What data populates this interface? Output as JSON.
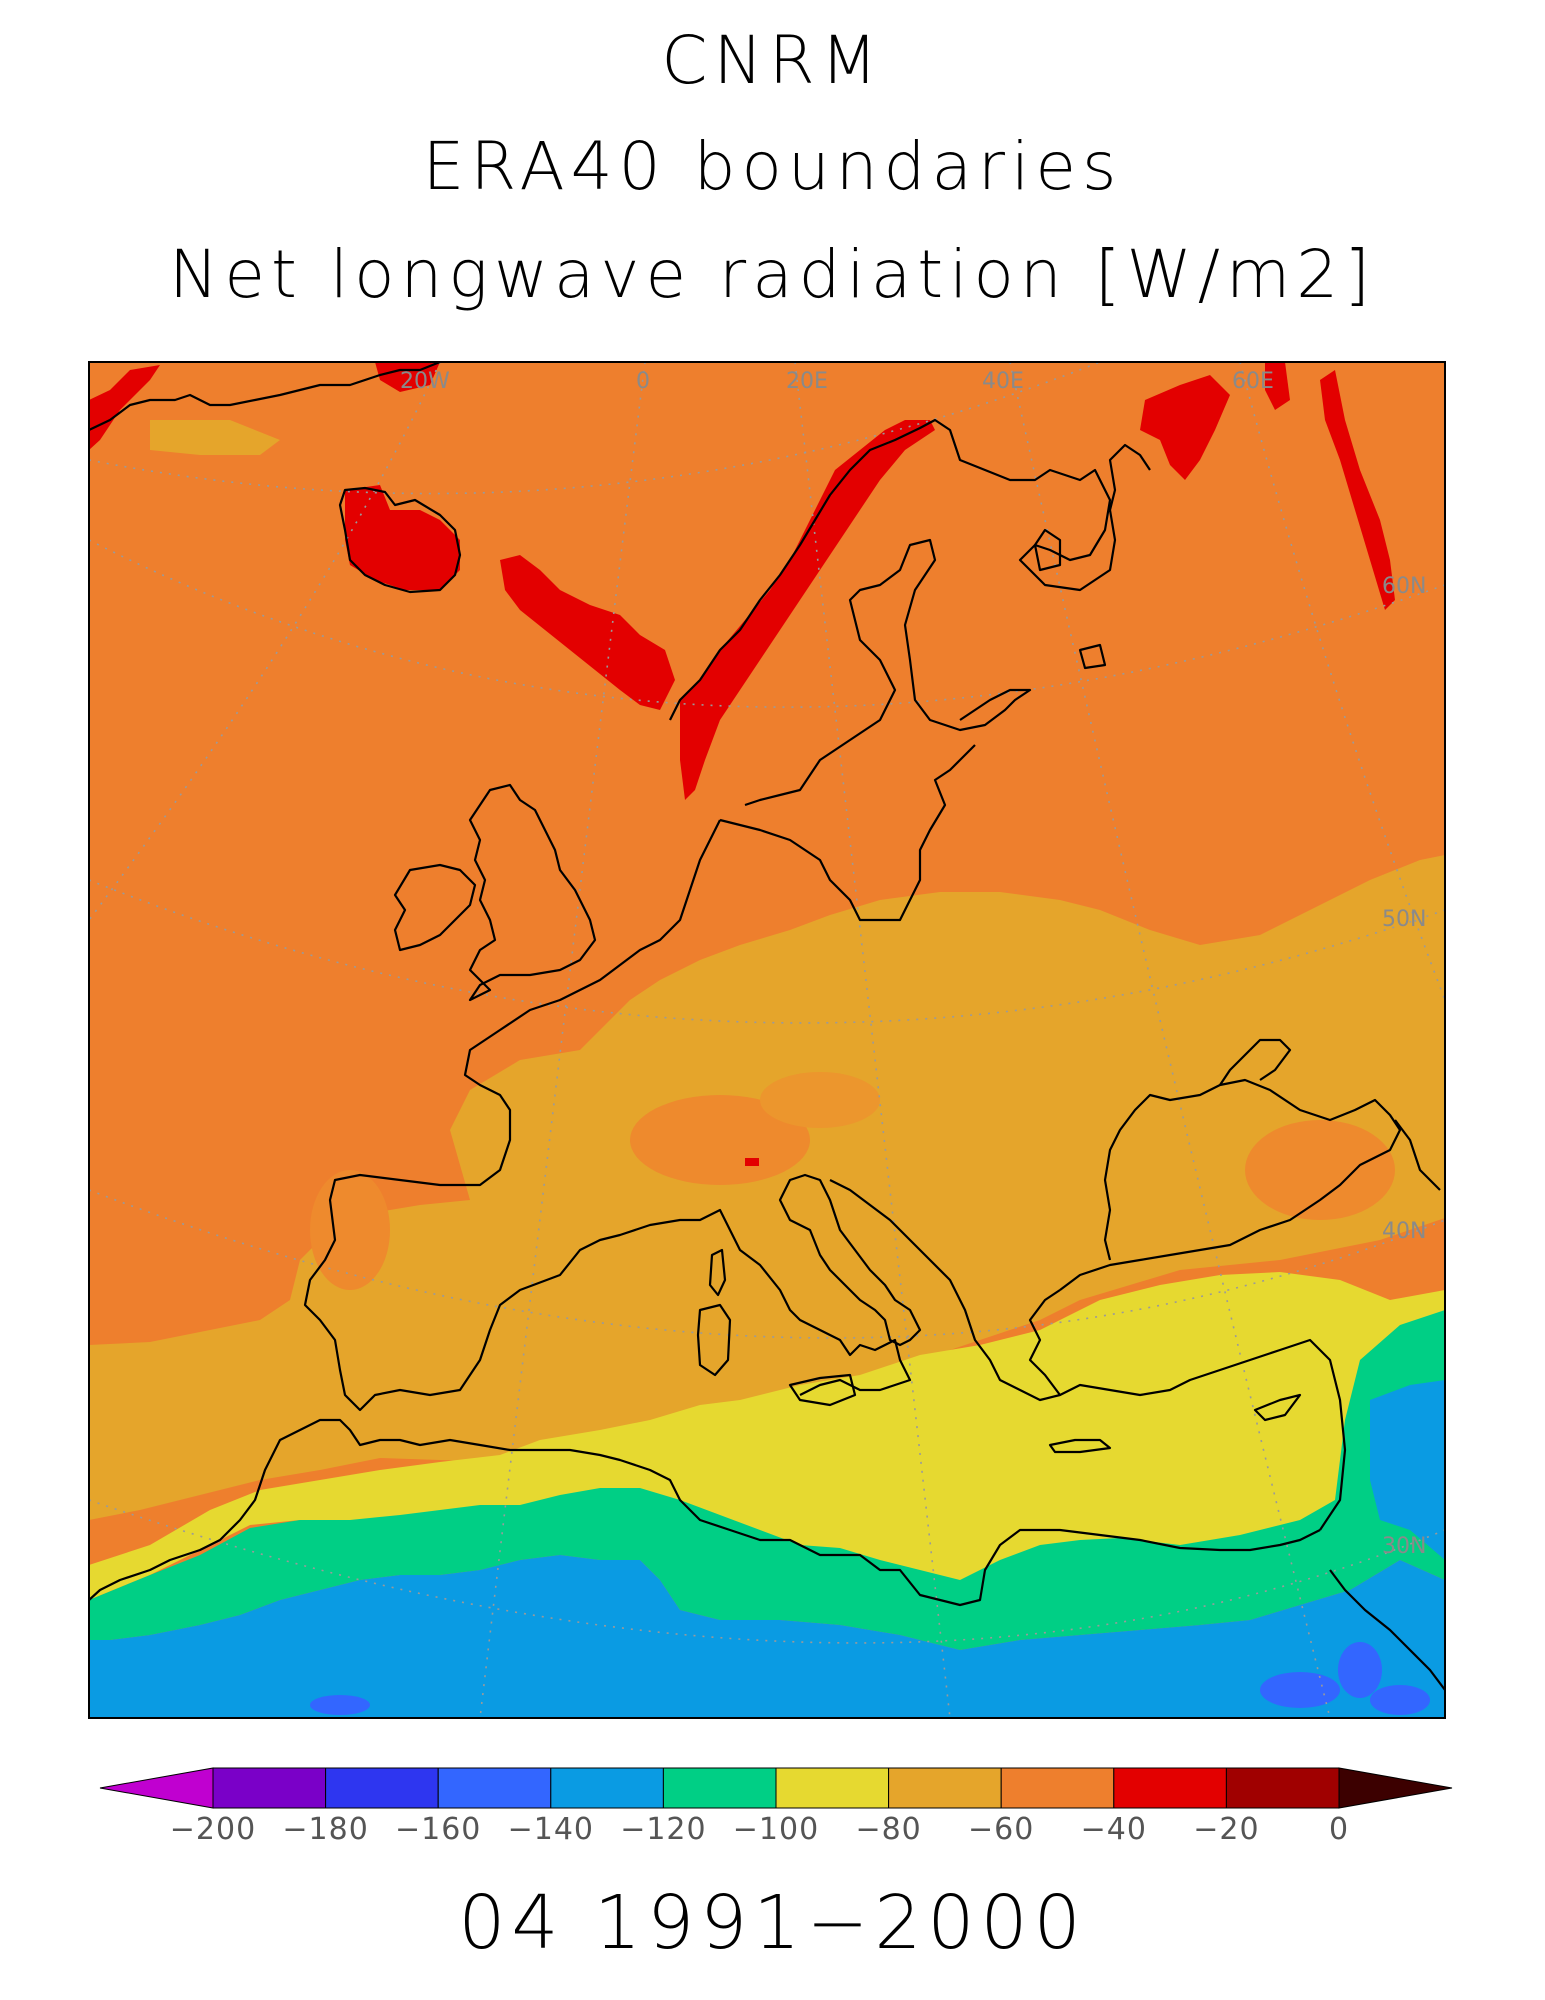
{
  "title": {
    "line1": "CNRM",
    "line2": "ERA40 boundaries",
    "line3": "Net longwave radiation [W/m2]"
  },
  "period": "04 1991−2000",
  "lon_labels": [
    "20W",
    "0",
    "20E",
    "40E",
    "60E"
  ],
  "lat_labels": [
    "60N",
    "50N",
    "40N",
    "30N"
  ],
  "colorbar": {
    "ticks": [
      "−200",
      "−180",
      "−160",
      "−140",
      "−120",
      "−100",
      "−80",
      "−60",
      "−40",
      "−20",
      "0"
    ],
    "colors": [
      "#7a00c8",
      "#2e36f0",
      "#3366ff",
      "#0a9be3",
      "#00cf85",
      "#e6d930",
      "#e5a52b",
      "#ee7f2d",
      "#e30000",
      "#a00000"
    ],
    "low_arrow_color": "#c000d0",
    "high_arrow_color": "#3c0000"
  },
  "chart_data": {
    "type": "heatmap",
    "region": "Europe, North Africa",
    "variable": "Net longwave radiation [W/m2]",
    "colorbar_range": [
      -200,
      0
    ],
    "colorbar_step": 20,
    "features": [
      {
        "area": "Norwegian mountains, Iceland, Faroe, Novaya Zemlya",
        "value_range": [
          -40,
          -20
        ]
      },
      {
        "area": "North Atlantic, Scandinavia, Baltic, Russia north",
        "value_range": [
          -60,
          -40
        ]
      },
      {
        "area": "Central Europe, Mediterranean, Iberia",
        "value_range": [
          -80,
          -60
        ]
      },
      {
        "area": "North African coast, eastern Mediterranean",
        "value_range": [
          -100,
          -80
        ]
      },
      {
        "area": "Northern Sahara band",
        "value_range": [
          -120,
          -100
        ]
      },
      {
        "area": "Sahara, Arabia",
        "value_range": [
          -140,
          -120
        ]
      },
      {
        "area": "Southern Sahara spots",
        "value_range": [
          -160,
          -140
        ]
      }
    ]
  }
}
